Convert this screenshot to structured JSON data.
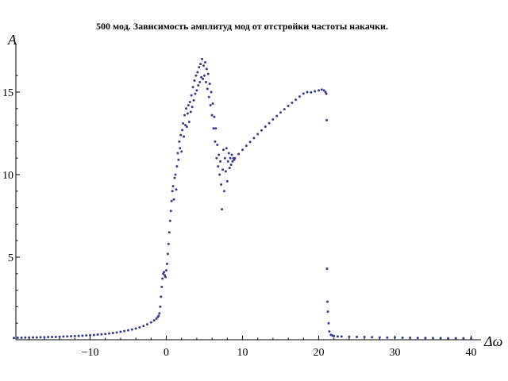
{
  "chart_data": {
    "type": "scatter",
    "title": "500 мод. Зависимость амплитуд мод от отстройки частоты накачки.",
    "xlabel": "Δω",
    "ylabel": "A",
    "xlim": [
      -20,
      40
    ],
    "ylim": [
      0,
      17
    ],
    "x_ticks": [
      -10,
      0,
      10,
      20,
      30,
      40
    ],
    "y_ticks": [
      5,
      10,
      15
    ],
    "point_color": "#3b3b8f",
    "grid": false,
    "series": [
      {
        "points": [
          [
            -20.0,
            0.11
          ],
          [
            -19.5,
            0.12
          ],
          [
            -19.0,
            0.12
          ],
          [
            -18.5,
            0.13
          ],
          [
            -18.0,
            0.13
          ],
          [
            -17.5,
            0.14
          ],
          [
            -17.0,
            0.14
          ],
          [
            -16.5,
            0.15
          ],
          [
            -16.0,
            0.15
          ],
          [
            -15.5,
            0.16
          ],
          [
            -15.0,
            0.17
          ],
          [
            -14.5,
            0.17
          ],
          [
            -14.0,
            0.18
          ],
          [
            -13.5,
            0.19
          ],
          [
            -13.0,
            0.2
          ],
          [
            -12.5,
            0.21
          ],
          [
            -12.0,
            0.22
          ],
          [
            -11.5,
            0.23
          ],
          [
            -11.0,
            0.24
          ],
          [
            -10.5,
            0.26
          ],
          [
            -10.0,
            0.27
          ],
          [
            -9.5,
            0.29
          ],
          [
            -9.0,
            0.31
          ],
          [
            -8.5,
            0.33
          ],
          [
            -8.0,
            0.35
          ],
          [
            -7.5,
            0.38
          ],
          [
            -7.0,
            0.41
          ],
          [
            -6.5,
            0.44
          ],
          [
            -6.0,
            0.48
          ],
          [
            -5.5,
            0.52
          ],
          [
            -5.0,
            0.57
          ],
          [
            -4.5,
            0.62
          ],
          [
            -4.0,
            0.68
          ],
          [
            -3.5,
            0.75
          ],
          [
            -3.0,
            0.83
          ],
          [
            -2.5,
            0.93
          ],
          [
            -2.0,
            1.05
          ],
          [
            -1.6,
            1.17
          ],
          [
            -1.3,
            1.28
          ],
          [
            -1.1,
            1.38
          ],
          [
            -1.0,
            1.45
          ],
          [
            -0.9,
            1.6
          ],
          [
            -0.8,
            2.0
          ],
          [
            -0.7,
            2.6
          ],
          [
            -0.6,
            3.2
          ],
          [
            -0.5,
            3.7
          ],
          [
            -0.4,
            4.0
          ],
          [
            -0.3,
            4.1
          ],
          [
            -0.2,
            3.9
          ],
          [
            -0.1,
            3.8
          ],
          [
            0.0,
            4.2
          ],
          [
            0.1,
            4.6
          ],
          [
            0.2,
            5.2
          ],
          [
            0.3,
            5.8
          ],
          [
            0.4,
            6.5
          ],
          [
            0.5,
            7.2
          ],
          [
            0.6,
            7.8
          ],
          [
            0.7,
            8.4
          ],
          [
            0.8,
            9.0
          ],
          [
            0.9,
            9.3
          ],
          [
            1.0,
            8.5
          ],
          [
            1.1,
            9.8
          ],
          [
            1.2,
            10.0
          ],
          [
            1.3,
            9.1
          ],
          [
            1.4,
            10.5
          ],
          [
            1.5,
            11.3
          ],
          [
            1.6,
            10.9
          ],
          [
            1.7,
            12.0
          ],
          [
            1.8,
            11.6
          ],
          [
            1.9,
            12.4
          ],
          [
            2.0,
            11.4
          ],
          [
            2.1,
            12.7
          ],
          [
            2.2,
            13.1
          ],
          [
            2.3,
            12.3
          ],
          [
            2.4,
            13.6
          ],
          [
            2.5,
            13.0
          ],
          [
            2.6,
            14.0
          ],
          [
            2.7,
            12.9
          ],
          [
            2.8,
            13.7
          ],
          [
            2.9,
            14.2
          ],
          [
            3.0,
            13.2
          ],
          [
            3.1,
            14.4
          ],
          [
            3.2,
            13.8
          ],
          [
            3.3,
            14.8
          ],
          [
            3.4,
            14.1
          ],
          [
            3.5,
            15.3
          ],
          [
            3.6,
            14.5
          ],
          [
            3.7,
            15.7
          ],
          [
            3.8,
            14.9
          ],
          [
            3.9,
            16.0
          ],
          [
            4.0,
            15.1
          ],
          [
            4.1,
            16.2
          ],
          [
            4.2,
            15.4
          ],
          [
            4.3,
            16.5
          ],
          [
            4.4,
            15.6
          ],
          [
            4.5,
            16.7
          ],
          [
            4.6,
            15.9
          ],
          [
            4.7,
            17.0
          ],
          [
            4.8,
            15.8
          ],
          [
            4.9,
            16.6
          ],
          [
            5.0,
            16.0
          ],
          [
            5.1,
            16.8
          ],
          [
            5.2,
            15.6
          ],
          [
            5.3,
            16.4
          ],
          [
            5.4,
            15.2
          ],
          [
            5.5,
            16.1
          ],
          [
            5.6,
            14.7
          ],
          [
            5.7,
            15.5
          ],
          [
            5.8,
            14.2
          ],
          [
            5.9,
            15.0
          ],
          [
            6.0,
            13.6
          ],
          [
            6.1,
            14.3
          ],
          [
            6.2,
            12.8
          ],
          [
            6.3,
            13.5
          ],
          [
            6.4,
            12.0
          ],
          [
            6.5,
            12.8
          ],
          [
            6.6,
            11.0
          ],
          [
            6.7,
            11.8
          ],
          [
            6.8,
            10.5
          ],
          [
            6.9,
            11.2
          ],
          [
            7.0,
            10.0
          ],
          [
            7.1,
            10.8
          ],
          [
            7.2,
            9.4
          ],
          [
            7.3,
            7.9
          ],
          [
            7.4,
            10.3
          ],
          [
            7.5,
            11.5
          ],
          [
            7.6,
            9.0
          ],
          [
            7.7,
            11.0
          ],
          [
            7.8,
            10.2
          ],
          [
            7.9,
            11.6
          ],
          [
            8.0,
            9.6
          ],
          [
            8.1,
            10.8
          ],
          [
            8.2,
            11.3
          ],
          [
            8.3,
            10.4
          ],
          [
            8.4,
            11.0
          ],
          [
            8.5,
            10.6
          ],
          [
            8.6,
            11.2
          ],
          [
            8.7,
            10.8
          ],
          [
            8.8,
            11.0
          ],
          [
            8.9,
            10.9
          ],
          [
            9.0,
            11.0
          ],
          [
            9.5,
            11.25
          ],
          [
            10.0,
            11.5
          ],
          [
            10.5,
            11.74
          ],
          [
            11.0,
            11.98
          ],
          [
            11.5,
            12.22
          ],
          [
            12.0,
            12.45
          ],
          [
            12.5,
            12.68
          ],
          [
            13.0,
            12.9
          ],
          [
            13.5,
            13.12
          ],
          [
            14.0,
            13.34
          ],
          [
            14.5,
            13.55
          ],
          [
            15.0,
            13.76
          ],
          [
            15.5,
            13.96
          ],
          [
            16.0,
            14.16
          ],
          [
            16.5,
            14.35
          ],
          [
            17.0,
            14.54
          ],
          [
            17.5,
            14.73
          ],
          [
            18.0,
            14.91
          ],
          [
            18.5,
            15.0
          ],
          [
            19.0,
            14.98
          ],
          [
            19.5,
            15.05
          ],
          [
            20.0,
            15.1
          ],
          [
            20.4,
            15.15
          ],
          [
            20.7,
            15.1
          ],
          [
            20.9,
            15.0
          ],
          [
            21.0,
            14.9
          ],
          [
            21.05,
            13.3
          ],
          [
            21.1,
            4.3
          ],
          [
            21.15,
            2.3
          ],
          [
            21.2,
            1.7
          ],
          [
            21.3,
            1.0
          ],
          [
            21.4,
            0.5
          ],
          [
            21.6,
            0.3
          ],
          [
            21.8,
            0.25
          ],
          [
            22.0,
            0.22
          ],
          [
            22.5,
            0.2
          ],
          [
            23.0,
            0.19
          ],
          [
            24.0,
            0.18
          ],
          [
            25.0,
            0.17
          ],
          [
            26.0,
            0.16
          ],
          [
            27.0,
            0.15
          ],
          [
            28.0,
            0.14
          ],
          [
            29.0,
            0.13
          ],
          [
            30.0,
            0.13
          ],
          [
            31.0,
            0.12
          ],
          [
            32.0,
            0.12
          ],
          [
            33.0,
            0.11
          ],
          [
            34.0,
            0.11
          ],
          [
            35.0,
            0.1
          ],
          [
            36.0,
            0.1
          ],
          [
            37.0,
            0.09
          ],
          [
            38.0,
            0.09
          ],
          [
            39.0,
            0.09
          ],
          [
            40.0,
            0.08
          ]
        ]
      }
    ]
  }
}
